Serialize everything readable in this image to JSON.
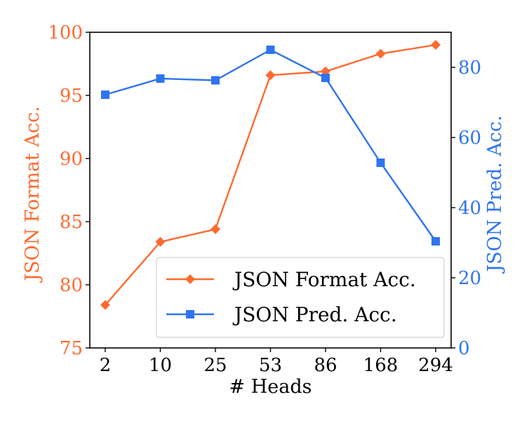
{
  "chart_data": {
    "type": "line",
    "xlabel": "# Heads",
    "categories": [
      "2",
      "10",
      "25",
      "53",
      "86",
      "168",
      "294"
    ],
    "y_left": {
      "label": "JSON Format Acc.",
      "ylim": [
        75,
        100
      ],
      "ticks": [
        "75",
        "80",
        "85",
        "90",
        "95",
        "100"
      ],
      "color": "#ff6a2f"
    },
    "y_right": {
      "label": "JSON Pred. Acc.",
      "ylim": [
        0,
        90
      ],
      "ticks": [
        "0",
        "20",
        "40",
        "60",
        "80"
      ],
      "color": "#2f74ef"
    },
    "series": [
      {
        "name": "JSON Format Acc.",
        "axis": "left",
        "marker": "diamond",
        "color": "#ff6a2f",
        "values": [
          78.4,
          83.4,
          84.4,
          96.6,
          96.9,
          98.3,
          99.0
        ]
      },
      {
        "name": "JSON Pred. Acc.",
        "axis": "right",
        "marker": "square",
        "color": "#2f74ef",
        "values": [
          72.2,
          76.8,
          76.3,
          85.0,
          77.0,
          52.8,
          30.4
        ]
      }
    ],
    "legend": "bottom-right",
    "grid": false
  }
}
